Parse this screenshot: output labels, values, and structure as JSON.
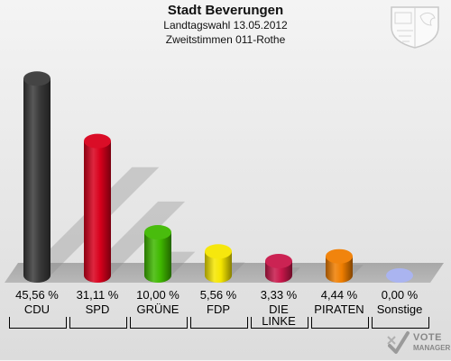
{
  "header": {
    "title": "Stadt Beverungen",
    "subtitle1": "Landtagswahl 13.05.2012",
    "subtitle2": "Zweitstimmen 011-Rothe"
  },
  "chart_data": {
    "type": "bar",
    "categories": [
      "CDU",
      "SPD",
      "GRÜNE",
      "FDP",
      "DIE LINKE",
      "PIRATEN",
      "Sonstige"
    ],
    "category_lines": [
      [
        "CDU"
      ],
      [
        "SPD"
      ],
      [
        "GRÜNE"
      ],
      [
        "FDP"
      ],
      [
        "DIE",
        "LINKE"
      ],
      [
        "PIRATEN"
      ],
      [
        "Sonstige"
      ]
    ],
    "values": [
      45.56,
      31.11,
      10.0,
      5.56,
      3.33,
      4.44,
      0.0
    ],
    "value_labels": [
      "45,56 %",
      "31,11 %",
      "10,00 %",
      "5,56 %",
      "3,33 %",
      "4,44 %",
      "0,00 %"
    ],
    "colors": [
      "#3a3a3a",
      "#d8001c",
      "#3fb800",
      "#f5e600",
      "#c8174a",
      "#f07e00",
      "#aab4f0"
    ],
    "ylim": [
      0,
      50
    ]
  },
  "logo": {
    "line1": "VOTE",
    "line2": "MANAGER",
    "icon": "ballot-check-icon"
  },
  "crest_icon": "coat-of-arms-icon"
}
